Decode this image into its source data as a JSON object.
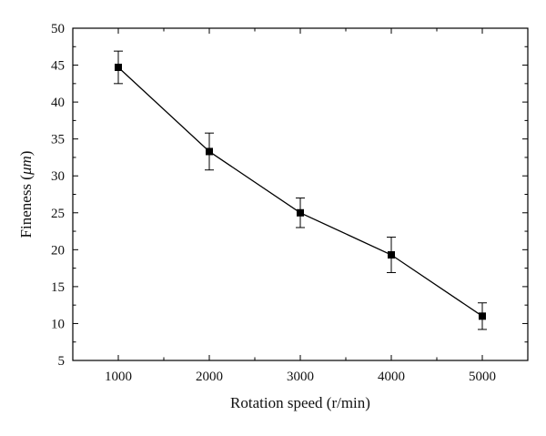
{
  "chart_data": {
    "type": "line",
    "title": "",
    "xlabel": "Rotation speed (r/min)",
    "ylabel_prefix": "Fineness (",
    "ylabel_unit": "μm",
    "ylabel_suffix": ")",
    "x": [
      1000,
      2000,
      3000,
      4000,
      5000
    ],
    "xlim": [
      500,
      5500
    ],
    "ylim": [
      5,
      50
    ],
    "xticks": [
      1000,
      2000,
      3000,
      4000,
      5000
    ],
    "yticks": [
      5,
      10,
      15,
      20,
      25,
      30,
      35,
      40,
      45,
      50
    ],
    "series": [
      {
        "values": [
          44.7,
          33.3,
          25.0,
          19.3,
          11.0
        ],
        "error": [
          2.2,
          2.5,
          2.0,
          2.4,
          1.8
        ],
        "marker": "square",
        "color": "#000000"
      }
    ],
    "grid": false,
    "legend": "none"
  }
}
